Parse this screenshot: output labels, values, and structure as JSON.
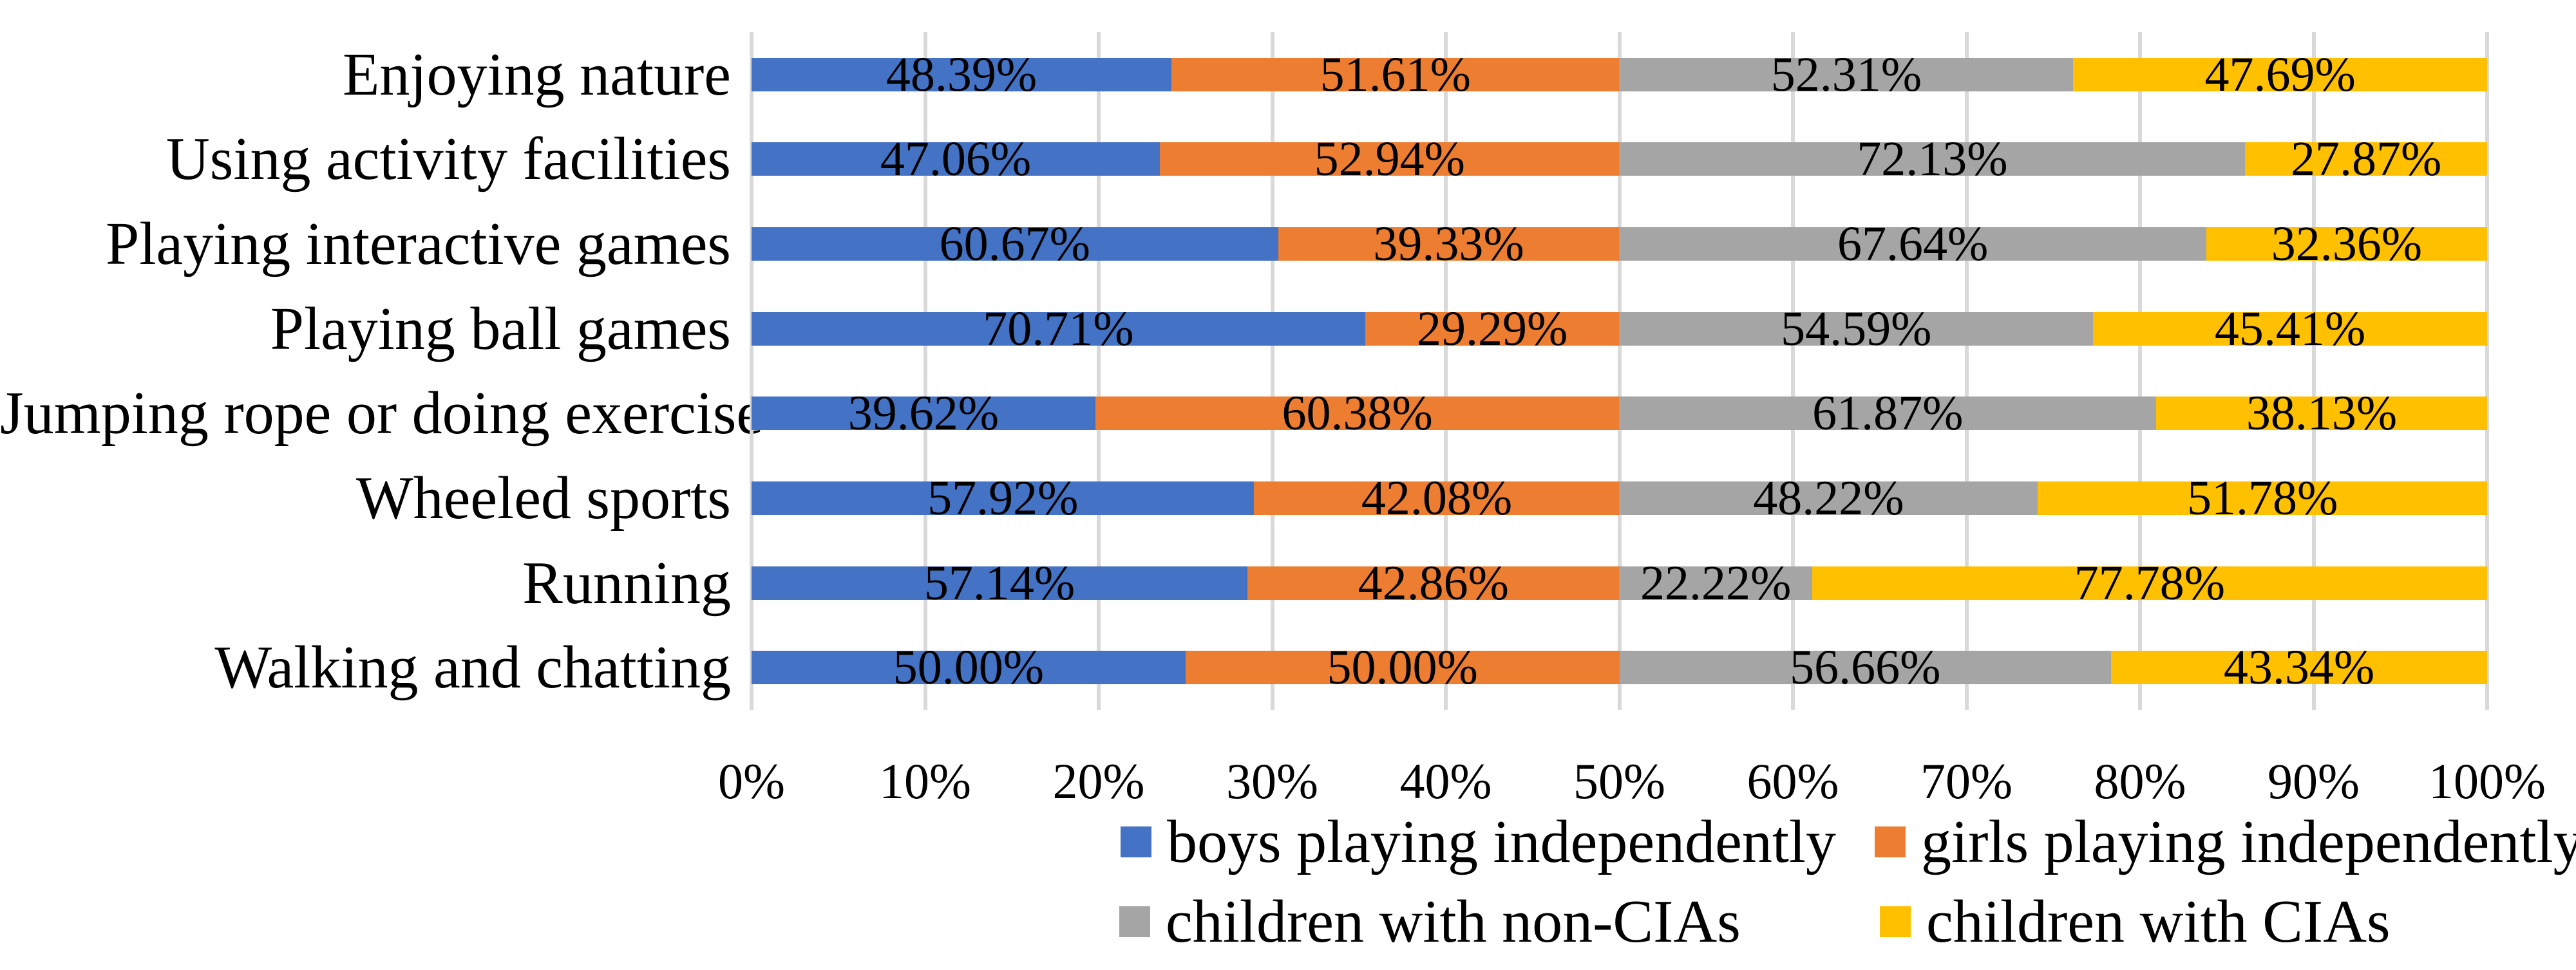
{
  "chart_data": {
    "type": "bar",
    "orientation": "horizontal",
    "stacked": true,
    "title": "",
    "categories": [
      "Enjoying nature",
      "Using activity facilities",
      "Playing interactive games",
      "Playing ball games",
      "Jumping rope or doing exercise",
      "Wheeled sports",
      "Running",
      "Walking and chatting"
    ],
    "series": [
      {
        "key": "boys",
        "name": "boys playing independently",
        "color": "#4472C4",
        "values": [
          48.39,
          47.06,
          60.67,
          70.71,
          39.62,
          57.92,
          57.14,
          50.0
        ],
        "labels": [
          "48.39%",
          "47.06%",
          "60.67%",
          "70.71%",
          "39.62%",
          "57.92%",
          "57.14%",
          "50.00%"
        ]
      },
      {
        "key": "girls",
        "name": "girls playing independently",
        "color": "#ED7D31",
        "values": [
          51.61,
          52.94,
          39.33,
          29.29,
          60.38,
          42.08,
          42.86,
          50.0
        ],
        "labels": [
          "51.61%",
          "52.94%",
          "39.33%",
          "29.29%",
          "60.38%",
          "42.08%",
          "42.86%",
          "50.00%"
        ]
      },
      {
        "key": "non-cias",
        "name": "children with non-CIAs",
        "color": "#A5A5A5",
        "values": [
          52.31,
          72.13,
          67.64,
          54.59,
          61.87,
          48.22,
          22.22,
          56.66
        ],
        "labels": [
          "52.31%",
          "72.13%",
          "67.64%",
          "54.59%",
          "61.87%",
          "48.22%",
          "22.22%",
          "56.66%"
        ]
      },
      {
        "key": "cias",
        "name": "children with CIAs",
        "color": "#FFC000",
        "values": [
          47.69,
          27.87,
          32.36,
          45.41,
          38.13,
          51.78,
          77.78,
          43.34
        ],
        "labels": [
          "47.69%",
          "27.87%",
          "32.36%",
          "45.41%",
          "38.13%",
          "51.78%",
          "77.78%",
          "43.34%"
        ]
      }
    ],
    "x_ticks": [
      "0%",
      "10%",
      "20%",
      "30%",
      "40%",
      "50%",
      "60%",
      "70%",
      "80%",
      "90%",
      "100%"
    ],
    "xlim": [
      0,
      100
    ],
    "grid": true,
    "legend_position": "bottom",
    "scaling_note": "boys+girls pair and non-CIAs+CIAs pair each sum to 100%; each segment is drawn at value/2 of the 0-100% axis"
  },
  "styles": {
    "gridline_color": "#D9D9D9",
    "text_color": "#000000",
    "background": "#FFFFFF"
  }
}
